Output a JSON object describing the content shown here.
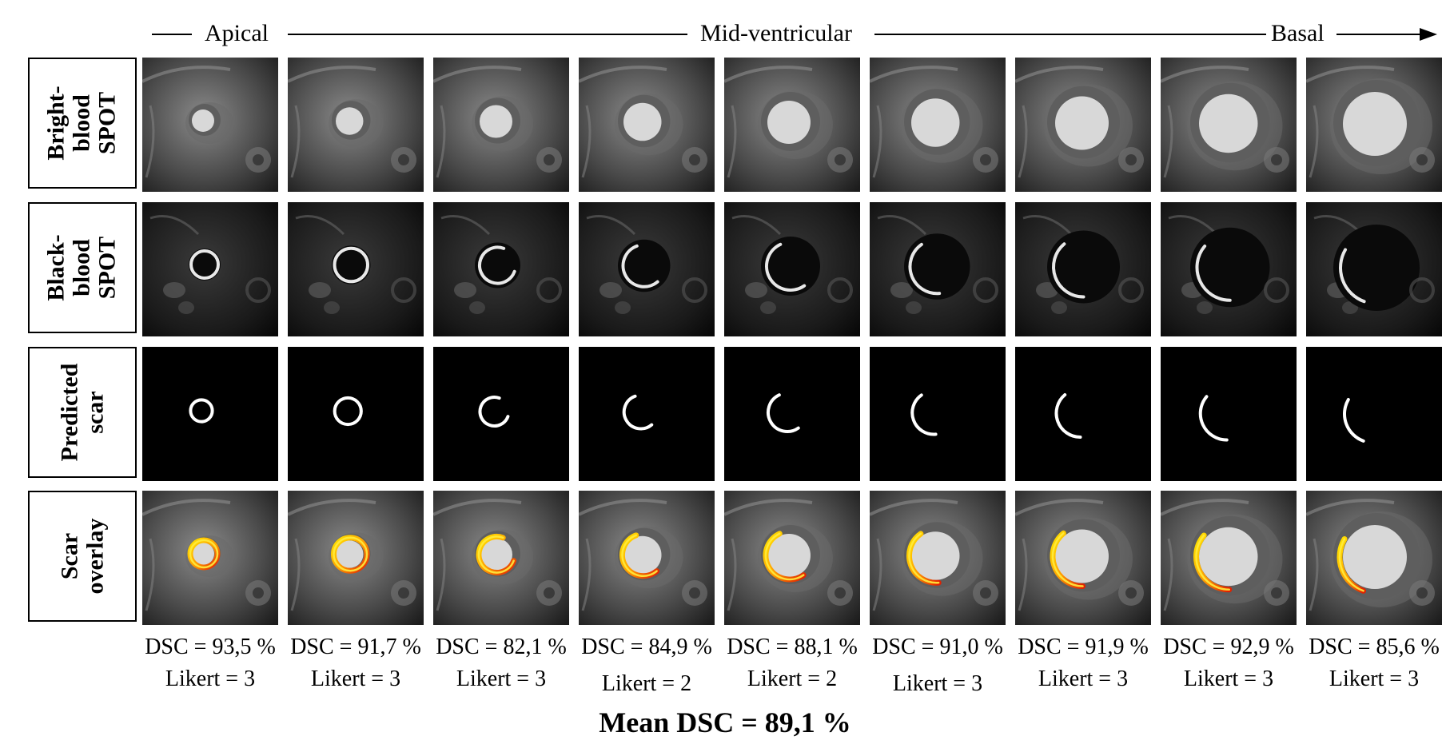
{
  "header": {
    "apical": "Apical",
    "mid": "Mid-ventricular",
    "basal": "Basal"
  },
  "rows": [
    {
      "key": "bright",
      "label": "Bright-\nblood\nSPOT"
    },
    {
      "key": "black",
      "label": "Black-\nblood\nSPOT"
    },
    {
      "key": "pred",
      "label": "Predicted\nscar"
    },
    {
      "key": "overlay",
      "label": "Scar\noverlay"
    }
  ],
  "slices": [
    {
      "dsc": "DSC = 93,5 %",
      "likert": "Likert = 3",
      "scar_start_deg": 0,
      "scar_extent_deg": 360
    },
    {
      "dsc": "DSC = 91,7 %",
      "likert": "Likert = 3",
      "scar_start_deg": 0,
      "scar_extent_deg": 360
    },
    {
      "dsc": "DSC = 82,1 %",
      "likert": "Likert = 3",
      "scar_start_deg": 70,
      "scar_extent_deg": 270
    },
    {
      "dsc": "DSC = 84,9 %",
      "likert": "Likert = 2",
      "scar_start_deg": 110,
      "scar_extent_deg": 200
    },
    {
      "dsc": "DSC = 88,1 %",
      "likert": "Likert = 2",
      "scar_start_deg": 115,
      "scar_extent_deg": 190
    },
    {
      "dsc": "DSC = 91,0 %",
      "likert": "Likert = 3",
      "scar_start_deg": 125,
      "scar_extent_deg": 150
    },
    {
      "dsc": "DSC = 91,9 %",
      "likert": "Likert = 3",
      "scar_start_deg": 130,
      "scar_extent_deg": 140
    },
    {
      "dsc": "DSC = 92,9 %",
      "likert": "Likert = 3",
      "scar_start_deg": 140,
      "scar_extent_deg": 130
    },
    {
      "dsc": "DSC = 85,6 %",
      "likert": "Likert = 3",
      "scar_start_deg": 150,
      "scar_extent_deg": 100
    }
  ],
  "summary": {
    "mean": "Mean DSC = 89,1 %"
  }
}
